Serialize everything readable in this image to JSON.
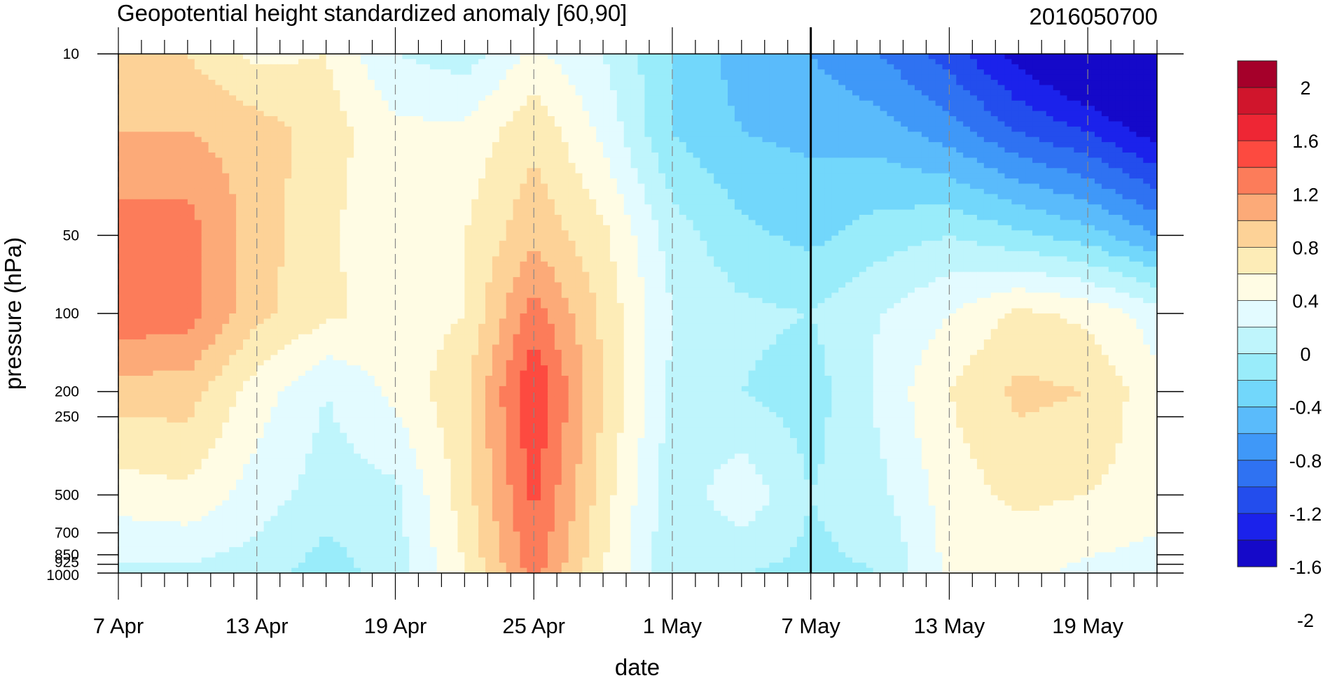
{
  "chart_data": {
    "type": "heatmap",
    "title": "Geopotential height standardized anomaly [60,90]",
    "date_stamp": "2016050700",
    "xlabel": "date",
    "ylabel": "pressure (hPa)",
    "x_start_date": "2016-04-07",
    "x_end_date": "2016-05-22",
    "x_ticks": [
      {
        "label": "7 Apr",
        "day": 0
      },
      {
        "label": "13 Apr",
        "day": 6
      },
      {
        "label": "19 Apr",
        "day": 12
      },
      {
        "label": "25 Apr",
        "day": 18
      },
      {
        "label": "1 May",
        "day": 24
      },
      {
        "label": "7 May",
        "day": 30
      },
      {
        "label": "13 May",
        "day": 36
      },
      {
        "label": "19 May",
        "day": 42
      }
    ],
    "y_ticks": [
      10,
      50,
      100,
      200,
      250,
      500,
      700,
      850,
      925,
      1000
    ],
    "y_scale": "log",
    "y_reversed": true,
    "y_range_hPa": [
      10,
      1000
    ],
    "current_date_line": "7 May",
    "grid_dashed_x": true,
    "colorbar": {
      "placement": "right",
      "labels": [
        "2",
        "1.6",
        "1.2",
        "0.8",
        "0.4",
        "0",
        "-0.4",
        "-0.8",
        "-1.2",
        "-1.6",
        "-2"
      ],
      "colors": [
        "#a5002a",
        "#d0152c",
        "#ee2634",
        "#fd4a40",
        "#fc7c5a",
        "#fcaa78",
        "#fdd297",
        "#fdecb7",
        "#fffce4",
        "#e3fbff",
        "#bff5fc",
        "#99ecfa",
        "#72d7fb",
        "#5abbfb",
        "#3f98f8",
        "#2f72f2",
        "#234ded",
        "#1b22eb",
        "#1509c9"
      ]
    },
    "anomaly_grid": {
      "pressure_levels_hPa": [
        10,
        20,
        50,
        100,
        200,
        500,
        1000
      ],
      "days": [
        0,
        3,
        6,
        9,
        12,
        15,
        18,
        21,
        24,
        27,
        30,
        33,
        36,
        39,
        42,
        45
      ],
      "values": [
        [
          0.9,
          0.8,
          0.55,
          0.6,
          0.2,
          0.1,
          0.45,
          0.2,
          -0.2,
          -0.5,
          -0.6,
          -0.8,
          -1.1,
          -1.5,
          -1.8,
          -2.0
        ],
        [
          1.0,
          1.0,
          0.9,
          0.7,
          0.45,
          0.45,
          0.75,
          0.35,
          -0.2,
          -0.4,
          -0.45,
          -0.5,
          -0.7,
          -1.0,
          -1.2,
          -1.5
        ],
        [
          1.3,
          1.3,
          0.9,
          0.65,
          0.4,
          0.6,
          0.95,
          0.65,
          0.1,
          -0.15,
          -0.25,
          -0.1,
          0.0,
          -0.15,
          -0.3,
          -0.6
        ],
        [
          1.35,
          1.3,
          0.85,
          0.65,
          0.5,
          0.6,
          1.3,
          0.75,
          0.2,
          0.05,
          0.0,
          0.2,
          0.4,
          0.65,
          0.55,
          0.3
        ],
        [
          0.9,
          0.9,
          0.5,
          0.2,
          0.45,
          0.75,
          1.6,
          0.8,
          0.15,
          0.0,
          -0.1,
          0.25,
          0.6,
          0.85,
          0.8,
          0.45
        ],
        [
          0.5,
          0.55,
          0.3,
          0.1,
          0.15,
          0.7,
          1.45,
          0.7,
          0.05,
          0.35,
          0.0,
          0.15,
          0.5,
          0.65,
          0.6,
          0.5
        ],
        [
          0.15,
          0.15,
          0.1,
          -0.1,
          0.1,
          0.6,
          1.3,
          0.6,
          0.05,
          0.0,
          -0.05,
          0.0,
          0.45,
          0.45,
          0.35,
          0.3
        ]
      ]
    }
  }
}
